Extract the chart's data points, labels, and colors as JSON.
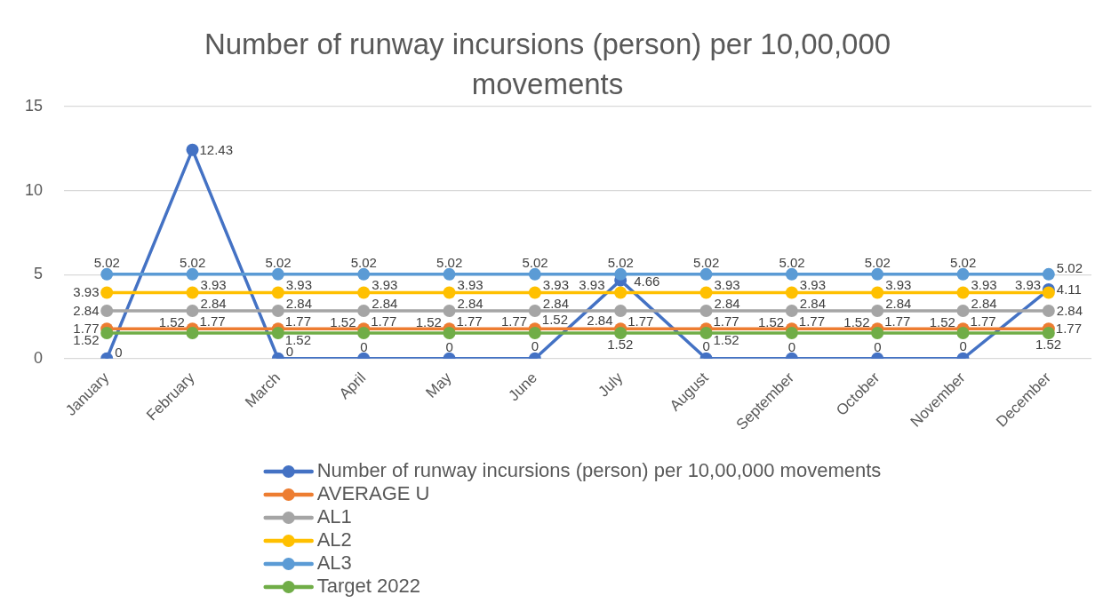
{
  "chart_data": {
    "type": "line",
    "title": "Number of runway incursions (person) per 10,00,000 movements",
    "categories": [
      "January",
      "February",
      "March",
      "April",
      "May",
      "June",
      "July",
      "August",
      "September",
      "October",
      "November",
      "December"
    ],
    "series": [
      {
        "name": "Number of runway incursions (person) per 10,00,000 movements",
        "color": "#4472c4",
        "values": [
          0,
          12.43,
          0,
          0,
          0,
          0,
          4.66,
          0,
          0,
          0,
          0,
          4.11
        ]
      },
      {
        "name": "AVERAGE U",
        "color": "#ed7d31",
        "values": [
          1.77,
          1.77,
          1.77,
          1.77,
          1.77,
          1.77,
          1.77,
          1.77,
          1.77,
          1.77,
          1.77,
          1.77
        ]
      },
      {
        "name": "AL1",
        "color": "#a5a5a5",
        "values": [
          2.84,
          2.84,
          2.84,
          2.84,
          2.84,
          2.84,
          2.84,
          2.84,
          2.84,
          2.84,
          2.84,
          2.84
        ]
      },
      {
        "name": "AL2",
        "color": "#ffc000",
        "values": [
          3.93,
          3.93,
          3.93,
          3.93,
          3.93,
          3.93,
          3.93,
          3.93,
          3.93,
          3.93,
          3.93,
          3.93
        ]
      },
      {
        "name": "AL3",
        "color": "#5b9bd5",
        "values": [
          5.02,
          5.02,
          5.02,
          5.02,
          5.02,
          5.02,
          5.02,
          5.02,
          5.02,
          5.02,
          5.02,
          5.02
        ]
      },
      {
        "name": "Target 2022",
        "color": "#70ad47",
        "values": [
          1.52,
          1.52,
          1.52,
          1.52,
          1.52,
          1.52,
          1.52,
          1.52,
          1.52,
          1.52,
          1.52,
          1.52
        ]
      }
    ],
    "ylim": [
      0,
      15
    ],
    "yticks": [
      0,
      5,
      10,
      15
    ],
    "grid": "y",
    "legend": "bottom",
    "marker": "circle",
    "line_style": "solid",
    "data_labels": true
  }
}
